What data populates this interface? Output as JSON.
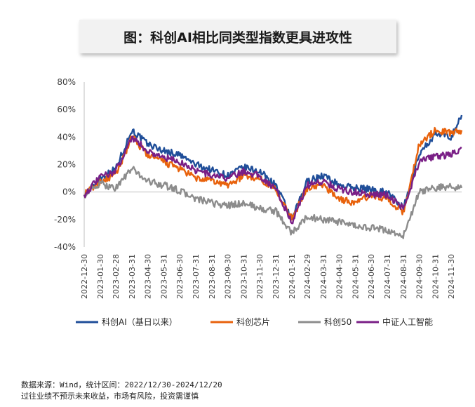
{
  "chart_data": {
    "type": "line",
    "title": "图：科创AI相比同类型指数更具进攻性",
    "y_ticks": [
      "80%",
      "60%",
      "40%",
      "20%",
      "0%",
      "-20%",
      "-40%"
    ],
    "ylim": [
      -40,
      80
    ],
    "x_tick_labels": [
      "2022-12-30",
      "2023-01-30",
      "2023-02-28",
      "2023-03-31",
      "2023-04-30",
      "2023-05-31",
      "2023-06-30",
      "2023-07-31",
      "2023-08-31",
      "2023-09-30",
      "2023-10-31",
      "2023-11-30",
      "2023-12-31",
      "2024-01-31",
      "2024-02-29",
      "2024-03-31",
      "2024-04-30",
      "2024-05-31",
      "2024-06-30",
      "2024-07-31",
      "2024-08-31",
      "2024-09-30",
      "2024-10-31",
      "2024-11-30"
    ],
    "x": [
      "2022-12-30",
      "2023-01-30",
      "2023-02-28",
      "2023-03-31",
      "2023-04-30",
      "2023-05-31",
      "2023-06-30",
      "2023-07-31",
      "2023-08-31",
      "2023-09-30",
      "2023-10-31",
      "2023-11-30",
      "2023-12-31",
      "2024-01-31",
      "2024-02-29",
      "2024-03-31",
      "2024-04-30",
      "2024-05-31",
      "2024-06-30",
      "2024-07-31",
      "2024-08-31",
      "2024-09-30",
      "2024-10-31",
      "2024-11-30",
      "2024-12-20"
    ],
    "grid": false,
    "legend_position": "bottom",
    "series": [
      {
        "name": "科创AI（基日以来）",
        "color": "#1f4e99",
        "values": [
          -2,
          10,
          17,
          45,
          35,
          30,
          27,
          20,
          16,
          12,
          18,
          15,
          5,
          -20,
          8,
          12,
          5,
          3,
          2,
          0,
          -12,
          28,
          42,
          40,
          56
        ]
      },
      {
        "name": "科创芯片",
        "color": "#e8620c",
        "values": [
          -2,
          8,
          12,
          40,
          27,
          22,
          17,
          10,
          8,
          5,
          12,
          10,
          2,
          -20,
          3,
          5,
          -5,
          -8,
          -2,
          -5,
          -15,
          35,
          45,
          43,
          45
        ]
      },
      {
        "name": "科创50",
        "color": "#8c8c8c",
        "values": [
          -2,
          6,
          3,
          17,
          8,
          5,
          1,
          -5,
          -8,
          -10,
          -8,
          -12,
          -14,
          -30,
          -18,
          -20,
          -22,
          -25,
          -26,
          -28,
          -32,
          0,
          3,
          4,
          3
        ]
      },
      {
        "name": "中证人工智能",
        "color": "#7a1f86",
        "values": [
          -2,
          11,
          15,
          40,
          30,
          25,
          22,
          16,
          12,
          10,
          15,
          12,
          2,
          -22,
          5,
          8,
          2,
          0,
          -2,
          -2,
          -12,
          22,
          26,
          27,
          32
        ]
      }
    ]
  },
  "footnote": {
    "line1": "数据来源：Wind，统计区间：2022/12/30-2024/12/20",
    "line2": "过往业绩不预示未来收益，市场有风险，投资需谨慎"
  }
}
